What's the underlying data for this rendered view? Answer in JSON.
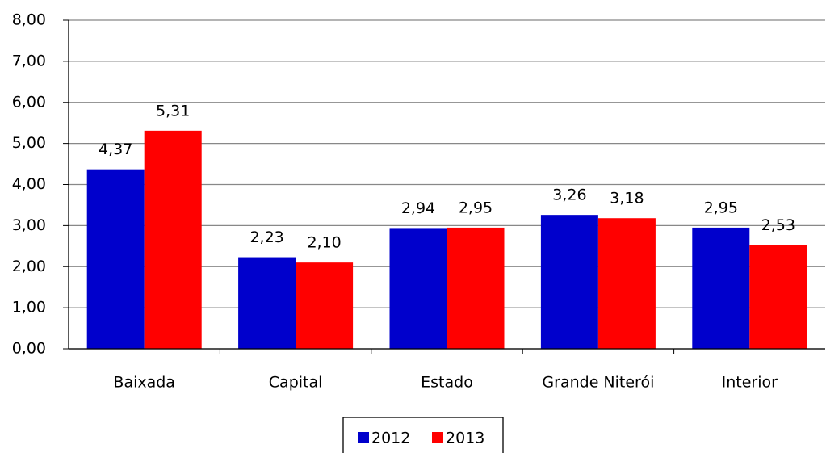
{
  "chart_data": {
    "type": "bar",
    "categories": [
      "Baixada",
      "Capital",
      "Estado",
      "Grande Niterói",
      "Interior"
    ],
    "series": [
      {
        "name": "2012",
        "color": "#0000cc",
        "values": [
          4.37,
          2.23,
          2.94,
          3.26,
          2.95
        ],
        "value_labels": [
          "4,37",
          "2,23",
          "2,94",
          "3,26",
          "2,95"
        ]
      },
      {
        "name": "2013",
        "color": "#ff0000",
        "values": [
          5.31,
          2.1,
          2.95,
          3.18,
          2.53
        ],
        "value_labels": [
          "5,31",
          "2,10",
          "2,95",
          "3,18",
          "2,53"
        ]
      }
    ],
    "ylim": [
      0,
      8
    ],
    "yticks": [
      {
        "value": 0,
        "label": "0,00"
      },
      {
        "value": 1,
        "label": "1,00"
      },
      {
        "value": 2,
        "label": "2,00"
      },
      {
        "value": 3,
        "label": "3,00"
      },
      {
        "value": 4,
        "label": "4,00"
      },
      {
        "value": 5,
        "label": "5,00"
      },
      {
        "value": 6,
        "label": "6,00"
      },
      {
        "value": 7,
        "label": "7,00"
      },
      {
        "value": 8,
        "label": "8,00"
      }
    ],
    "grid": true,
    "legend": "bottom"
  }
}
